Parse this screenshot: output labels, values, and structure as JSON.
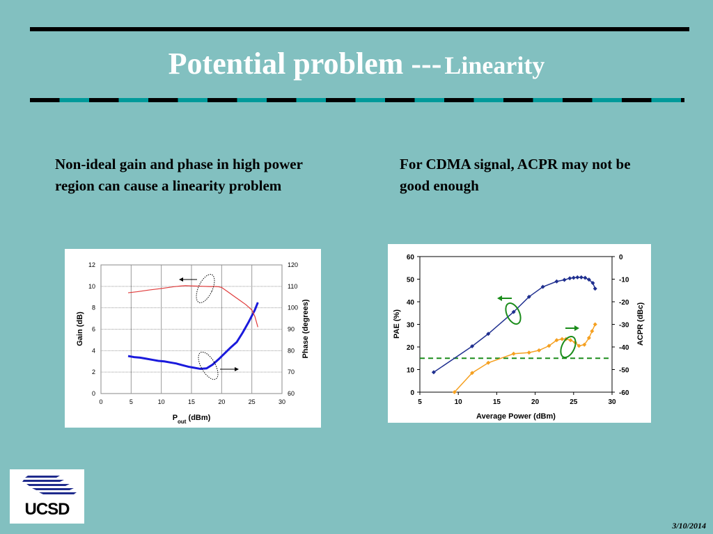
{
  "slide": {
    "title_main": "Potential problem ---",
    "title_sub": "Linearity",
    "bullet_left": "Non-ideal gain and phase in high power region can cause a linearity problem",
    "bullet_right": "For CDMA signal, ACPR may not be good enough",
    "logo_text": "UCSD",
    "date": "3/10/2014",
    "colors": {
      "background": "#82c0c0",
      "dash_teal": "#009a9a",
      "gain": "#1a1adc",
      "phase": "#e03a3a",
      "pae": "#1f2f8f",
      "acpr": "#f5a020",
      "marker_green": "#1a8c1a"
    }
  },
  "chart_data": [
    {
      "type": "line",
      "xlabel": "P",
      "xlabel_sub": "out",
      "xlabel_unit": " (dBm)",
      "ylabel": "Gain (dB)",
      "y2label": "Phase (degrees)",
      "xlim": [
        0,
        30
      ],
      "ylim": [
        0,
        12
      ],
      "y2lim": [
        60,
        120
      ],
      "xticks": [
        "0",
        "5",
        "10",
        "15",
        "20",
        "25",
        "30"
      ],
      "yticks": [
        "0",
        "2",
        "4",
        "6",
        "8",
        "10",
        "12"
      ],
      "y2ticks": [
        "60",
        "70",
        "80",
        "90",
        "100",
        "110",
        "120"
      ],
      "grid": true,
      "series": [
        {
          "axis": "left",
          "color": "#1a1adc",
          "x": [
            4.5,
            5.5,
            6.5,
            7.5,
            8.5,
            9.5,
            10.5,
            11.5,
            12.5,
            13.5,
            14.5,
            15.5,
            16.5,
            17.5,
            18.5,
            19.5,
            20.5,
            21.5,
            22.5,
            23.5,
            24.5,
            25.5,
            26.0
          ],
          "y": [
            3.5,
            3.4,
            3.35,
            3.25,
            3.15,
            3.05,
            3.0,
            2.9,
            2.8,
            2.65,
            2.5,
            2.4,
            2.3,
            2.35,
            2.7,
            3.2,
            3.75,
            4.3,
            4.8,
            5.7,
            6.7,
            7.8,
            8.5
          ]
        },
        {
          "axis": "right",
          "color": "#e03a3a",
          "x": [
            4.5,
            6,
            8,
            10,
            12,
            13,
            14,
            15,
            16,
            17,
            18,
            19,
            19.5,
            20,
            21,
            22,
            23,
            24,
            25,
            25.5,
            26.0
          ],
          "y": [
            107,
            107.5,
            108.3,
            109,
            109.8,
            110.1,
            110.3,
            110.2,
            110.1,
            110.0,
            109.9,
            109.9,
            109.8,
            109.5,
            107.5,
            105.5,
            103.5,
            101.5,
            99,
            96,
            91
          ]
        }
      ]
    },
    {
      "type": "line",
      "xlabel": "Average Power (dBm)",
      "ylabel": "PAE (%)",
      "y2label": "ACPR (dBc)",
      "xlim": [
        5,
        30
      ],
      "ylim": [
        0,
        60
      ],
      "y2lim": [
        -60,
        0
      ],
      "xticks": [
        "5",
        "10",
        "15",
        "20",
        "25",
        "30"
      ],
      "yticks": [
        "0",
        "10",
        "20",
        "30",
        "40",
        "50",
        "60"
      ],
      "y2ticks": [
        "-60",
        "-50",
        "-40",
        "-30",
        "-20",
        "-10",
        "0"
      ],
      "grid": false,
      "reference_line_acpr": -45,
      "series": [
        {
          "axis": "left",
          "color": "#1f2f8f",
          "x": [
            6.8,
            11.8,
            13.9,
            17.2,
            19.2,
            21.0,
            22.8,
            23.8,
            24.5,
            25.0,
            25.5,
            26.0,
            26.5,
            27.0,
            27.5,
            27.8
          ],
          "y": [
            8.8,
            20.3,
            25.8,
            35.5,
            42.2,
            46.6,
            49.0,
            49.7,
            50.4,
            50.6,
            50.8,
            50.8,
            50.6,
            49.8,
            48.3,
            45.8
          ]
        },
        {
          "axis": "right",
          "color": "#f5a020",
          "x": [
            9.5,
            11.8,
            13.9,
            17.2,
            19.2,
            20.5,
            21.8,
            22.8,
            23.5,
            24.0,
            24.6,
            25.2,
            25.7,
            26.4,
            27.0,
            27.4,
            27.8
          ],
          "y": [
            -60,
            -51.5,
            -47,
            -43,
            -42.5,
            -41.5,
            -39.5,
            -37,
            -36.5,
            -36.5,
            -37,
            -38,
            -39.5,
            -39,
            -36,
            -33,
            -30
          ]
        }
      ]
    }
  ]
}
